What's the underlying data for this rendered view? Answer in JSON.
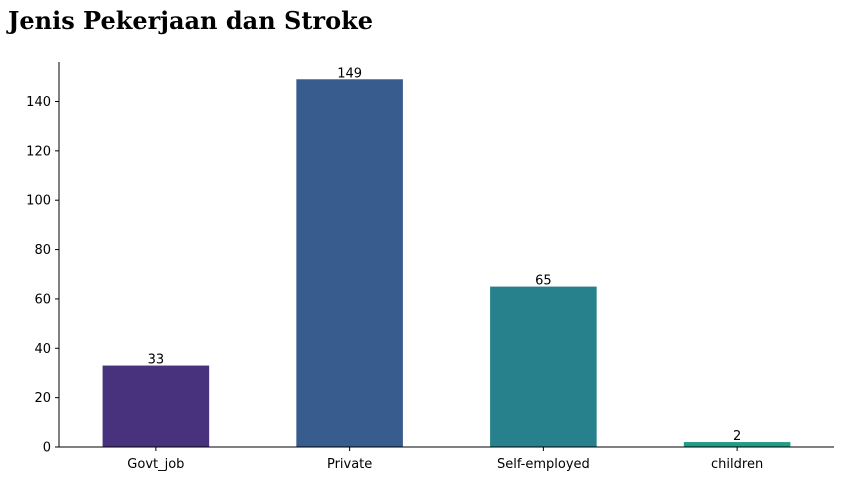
{
  "chart_data": {
    "type": "bar",
    "title": "Jenis Pekerjaan dan Stroke",
    "xlabel": "",
    "ylabel": "",
    "categories": [
      "Govt_job",
      "Private",
      "Self-employed",
      "children"
    ],
    "values": [
      33,
      149,
      65,
      2
    ],
    "data_labels": [
      "33",
      "149",
      "65",
      "2"
    ],
    "colors": [
      "#48327d",
      "#375c8d",
      "#26818d",
      "#1f9d89"
    ],
    "ylim": [
      0,
      156
    ],
    "yticks": [
      0,
      20,
      40,
      60,
      80,
      100,
      120,
      140
    ],
    "ytick_labels": [
      "0",
      "20",
      "40",
      "60",
      "80",
      "100",
      "120",
      "140"
    ],
    "grid": false,
    "legend": "none",
    "spines": [
      "left",
      "bottom"
    ]
  }
}
